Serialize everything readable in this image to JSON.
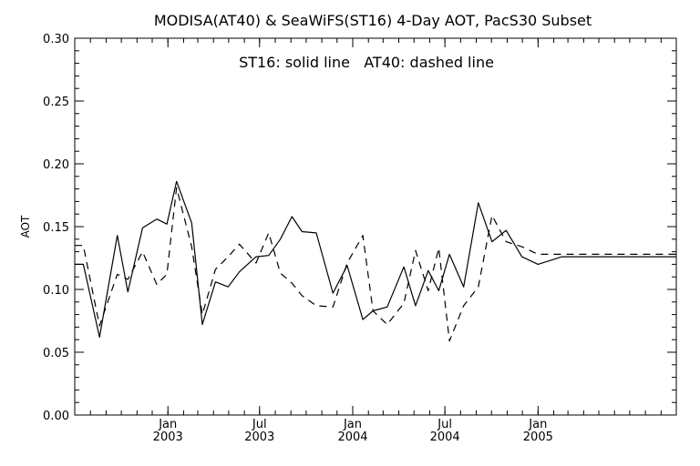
{
  "chart_data": {
    "type": "line",
    "title": "MODISA(AT40) & SeaWiFS(ST16) 4-Day AOT, PacS30 Subset",
    "annotation": "ST16: solid line   AT40: dashed line",
    "ylabel": "AOT",
    "xlabel": "",
    "ylim": [
      0.0,
      0.3
    ],
    "xlim": [
      "2002-07-01",
      "2005-10-01"
    ],
    "grid": false,
    "y_ticks": [
      "0.00",
      "0.05",
      "0.10",
      "0.15",
      "0.20",
      "0.25",
      "0.30"
    ],
    "x_ticks": [
      {
        "date": "2003-01-01",
        "month": "Jan",
        "year": "2003"
      },
      {
        "date": "2003-07-01",
        "month": "Jul",
        "year": "2003"
      },
      {
        "date": "2004-01-01",
        "month": "Jan",
        "year": "2004"
      },
      {
        "date": "2004-07-01",
        "month": "Jul",
        "year": "2004"
      },
      {
        "date": "2005-01-01",
        "month": "Jan",
        "year": "2005"
      }
    ],
    "series": [
      {
        "name": "ST16",
        "style": "solid",
        "color": "#000000",
        "x": [
          "2002-07-01",
          "2002-07-18",
          "2002-08-19",
          "2002-09-23",
          "2002-10-14",
          "2002-11-12",
          "2002-12-10",
          "2002-12-30",
          "2003-01-18",
          "2003-02-17",
          "2003-03-10",
          "2003-04-05",
          "2003-04-30",
          "2003-05-22",
          "2003-06-24",
          "2003-07-19",
          "2003-08-11",
          "2003-09-03",
          "2003-09-23",
          "2003-10-21",
          "2003-11-23",
          "2003-12-21",
          "2004-01-21",
          "2004-02-10",
          "2004-03-09",
          "2004-04-11",
          "2004-05-04",
          "2004-05-29",
          "2004-06-19",
          "2004-07-10",
          "2004-08-07",
          "2004-09-05",
          "2004-10-02",
          "2004-10-30",
          "2004-11-30",
          "2005-01-01",
          "2005-02-01",
          "2005-02-17",
          "2005-03-09",
          "2005-04-05",
          "2005-04-26",
          "2005-05-21",
          "2005-06-20",
          "2005-07-27",
          "2005-10-01"
        ],
        "y": [
          0.12,
          0.12,
          0.062,
          0.143,
          0.098,
          0.149,
          0.156,
          0.152,
          0.186,
          0.153,
          0.072,
          0.106,
          0.102,
          0.114,
          0.126,
          0.127,
          0.14,
          0.158,
          0.146,
          0.145,
          0.097,
          0.119,
          0.076,
          0.083,
          0.086,
          0.118,
          0.087,
          0.115,
          0.099,
          0.128,
          0.102,
          0.169,
          0.138,
          0.147,
          0.126,
          0.12,
          0.124,
          0.126,
          0.126,
          0.126,
          0.126,
          0.126,
          0.126,
          0.126,
          0.126
        ]
      },
      {
        "name": "AT40",
        "style": "dashed",
        "color": "#000000",
        "x": [
          "2002-07-01",
          "2002-07-18",
          "2002-08-19",
          "2002-09-23",
          "2002-10-14",
          "2002-11-12",
          "2002-12-10",
          "2002-12-30",
          "2003-01-18",
          "2003-02-17",
          "2003-03-10",
          "2003-04-05",
          "2003-04-30",
          "2003-05-22",
          "2003-06-24",
          "2003-07-19",
          "2003-08-11",
          "2003-09-03",
          "2003-09-23",
          "2003-10-21",
          "2003-11-23",
          "2003-12-21",
          "2004-01-21",
          "2004-02-10",
          "2004-03-09",
          "2004-04-11",
          "2004-05-04",
          "2004-05-29",
          "2004-06-19",
          "2004-07-10",
          "2004-08-07",
          "2004-09-05",
          "2004-10-02",
          "2004-10-30",
          "2004-11-30",
          "2005-01-01",
          "2005-02-01",
          "2005-02-17",
          "2005-03-09",
          "2005-04-05",
          "2005-04-26",
          "2005-05-21",
          "2005-06-20",
          "2005-07-27",
          "2005-10-01"
        ],
        "y": [
          0.135,
          0.135,
          0.071,
          0.112,
          0.108,
          0.13,
          0.104,
          0.112,
          0.181,
          0.134,
          0.08,
          0.116,
          0.126,
          0.136,
          0.121,
          0.145,
          0.113,
          0.105,
          0.095,
          0.087,
          0.086,
          0.121,
          0.143,
          0.083,
          0.072,
          0.089,
          0.131,
          0.099,
          0.133,
          0.059,
          0.087,
          0.102,
          0.159,
          0.138,
          0.134,
          0.128,
          0.128,
          0.128,
          0.128,
          0.128,
          0.128,
          0.128,
          0.128,
          0.128,
          0.128
        ]
      }
    ]
  }
}
